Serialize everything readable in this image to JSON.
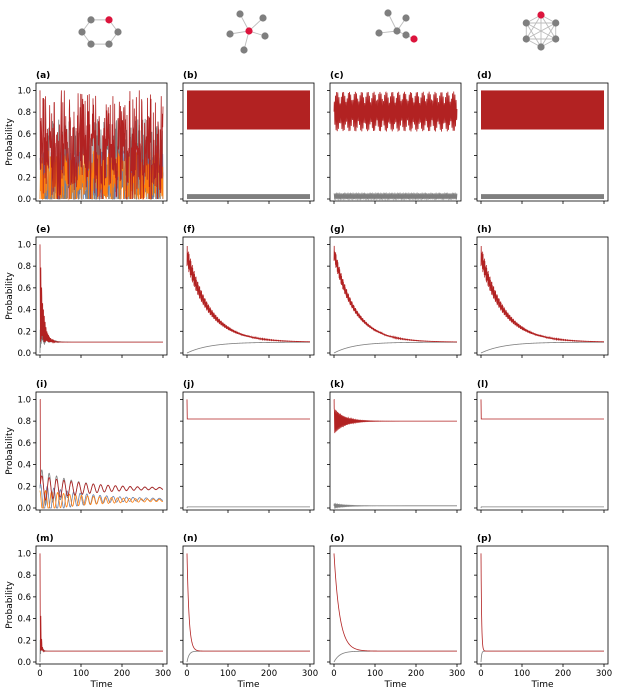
{
  "figure": {
    "graph_icons": [
      {
        "kind": "ring",
        "nodes": 6,
        "highlight_color": "#dc143c",
        "node_color": "#7f7f7f"
      },
      {
        "kind": "star",
        "nodes": 6,
        "highlight_color": "#dc143c",
        "node_color": "#7f7f7f"
      },
      {
        "kind": "tree",
        "nodes": 6,
        "highlight_color": "#dc143c",
        "node_color": "#7f7f7f"
      },
      {
        "kind": "complete",
        "nodes": 6,
        "highlight_color": "#dc143c",
        "node_color": "#7f7f7f"
      }
    ],
    "colors": {
      "target": "#b22222",
      "others": [
        "#7f7f7f",
        "#6a7fa8",
        "#ff7f0e",
        "#2ca02c",
        "#8c564b"
      ],
      "axis": "#000000"
    }
  },
  "chart_data": [
    {
      "panel": "(a)",
      "type": "line",
      "behavior": "chaotic",
      "ylabel": "Probability",
      "xlabel": "",
      "xlim": [
        0,
        300
      ],
      "ylim": [
        0,
        1.05
      ],
      "yticks": [
        "0.0",
        "0.2",
        "0.4",
        "0.6",
        "0.8",
        "1.0"
      ],
      "xticks": [],
      "series": [
        {
          "role": "target",
          "range": [
            0,
            1.0
          ]
        },
        {
          "role": "others",
          "range": [
            0,
            0.95
          ]
        }
      ]
    },
    {
      "panel": "(b)",
      "type": "line",
      "behavior": "band",
      "xlabel": "",
      "xlim": [
        0,
        300
      ],
      "ylim": [
        0,
        1.05
      ],
      "series": [
        {
          "role": "target",
          "band": [
            0.64,
            1.0
          ]
        },
        {
          "role": "others",
          "band": [
            0.0,
            0.045
          ]
        }
      ]
    },
    {
      "panel": "(c)",
      "type": "line",
      "behavior": "wave",
      "xlabel": "",
      "xlim": [
        0,
        300
      ],
      "ylim": [
        0,
        1.05
      ],
      "series": [
        {
          "role": "target",
          "band": [
            0.62,
            0.99
          ]
        },
        {
          "role": "others",
          "band": [
            0.0,
            0.05
          ]
        }
      ]
    },
    {
      "panel": "(d)",
      "type": "line",
      "behavior": "band",
      "xlabel": "",
      "xlim": [
        0,
        300
      ],
      "ylim": [
        0,
        1.05
      ],
      "series": [
        {
          "role": "target",
          "band": [
            0.64,
            1.0
          ]
        },
        {
          "role": "others",
          "band": [
            0.0,
            0.045
          ]
        }
      ]
    },
    {
      "panel": "(e)",
      "type": "line",
      "behavior": "fast_decay",
      "ylabel": "Probability",
      "xlabel": "",
      "xlim": [
        0,
        300
      ],
      "ylim": [
        0,
        1.05
      ],
      "yticks": [
        "0.0",
        "0.2",
        "0.4",
        "0.6",
        "0.8",
        "1.0"
      ],
      "series": [
        {
          "role": "target",
          "start": 1.0,
          "steady": 0.1,
          "tau": 8
        },
        {
          "role": "others",
          "start": 0.0,
          "steady": 0.1,
          "tau": 8
        }
      ]
    },
    {
      "panel": "(f)",
      "type": "line",
      "behavior": "oscillating_decay",
      "xlabel": "",
      "xlim": [
        0,
        300
      ],
      "ylim": [
        0,
        1.05
      ],
      "series": [
        {
          "role": "target",
          "start": 1.0,
          "steady": 0.1,
          "tau": 55,
          "amp": 0.2
        },
        {
          "role": "others",
          "start": 0.0,
          "steady": 0.1,
          "tau": 55
        }
      ]
    },
    {
      "panel": "(g)",
      "type": "line",
      "behavior": "oscillating_decay",
      "xlabel": "",
      "xlim": [
        0,
        300
      ],
      "ylim": [
        0,
        1.05
      ],
      "series": [
        {
          "role": "target",
          "start": 1.0,
          "steady": 0.1,
          "tau": 50,
          "amp": 0.15
        },
        {
          "role": "others",
          "start": 0.0,
          "steady": 0.1,
          "tau": 50
        }
      ]
    },
    {
      "panel": "(h)",
      "type": "line",
      "behavior": "oscillating_decay",
      "xlabel": "",
      "xlim": [
        0,
        300
      ],
      "ylim": [
        0,
        1.05
      ],
      "series": [
        {
          "role": "target",
          "start": 1.0,
          "steady": 0.1,
          "tau": 55,
          "amp": 0.2
        },
        {
          "role": "others",
          "start": 0.0,
          "steady": 0.1,
          "tau": 55
        }
      ]
    },
    {
      "panel": "(i)",
      "type": "line",
      "behavior": "damped_multi",
      "ylabel": "Probability",
      "xlabel": "",
      "xlim": [
        0,
        300
      ],
      "ylim": [
        0,
        1.05
      ],
      "yticks": [
        "0.0",
        "0.2",
        "0.4",
        "0.6",
        "0.8",
        "1.0"
      ],
      "series": [
        {
          "role": "target",
          "start": 1.0,
          "steady": 0.18
        },
        {
          "role": "others",
          "steady": [
            0.18,
            0.08,
            0.07
          ]
        }
      ]
    },
    {
      "panel": "(j)",
      "type": "line",
      "behavior": "step_flat",
      "xlabel": "",
      "xlim": [
        0,
        300
      ],
      "ylim": [
        0,
        1.05
      ],
      "series": [
        {
          "role": "target",
          "start": 1.0,
          "steady": 0.82
        },
        {
          "role": "others",
          "steady": 0.01
        }
      ]
    },
    {
      "panel": "(k)",
      "type": "line",
      "behavior": "damped",
      "xlabel": "",
      "xlim": [
        0,
        300
      ],
      "ylim": [
        0,
        1.05
      ],
      "series": [
        {
          "role": "target",
          "start": 1.0,
          "steady": 0.8,
          "amp": 0.12,
          "tau": 25
        },
        {
          "role": "others",
          "steady": 0.02
        }
      ]
    },
    {
      "panel": "(l)",
      "type": "line",
      "behavior": "step_flat",
      "xlabel": "",
      "xlim": [
        0,
        300
      ],
      "ylim": [
        0,
        1.05
      ],
      "series": [
        {
          "role": "target",
          "start": 1.0,
          "steady": 0.82
        },
        {
          "role": "others",
          "steady": 0.01
        }
      ]
    },
    {
      "panel": "(m)",
      "type": "line",
      "behavior": "fast_decay",
      "ylabel": "Probability",
      "xlabel": "Time",
      "xlim": [
        0,
        300
      ],
      "ylim": [
        0,
        1.05
      ],
      "yticks": [
        "0.0",
        "0.2",
        "0.4",
        "0.6",
        "0.8",
        "1.0"
      ],
      "xticks": [
        "0",
        "100",
        "200",
        "300"
      ],
      "series": [
        {
          "role": "target",
          "start": 1.0,
          "steady": 0.1,
          "tau": 2
        },
        {
          "role": "others",
          "start": 0.0,
          "steady": 0.1,
          "tau": 2
        }
      ]
    },
    {
      "panel": "(n)",
      "type": "line",
      "behavior": "smooth_decay",
      "xlabel": "Time",
      "xlim": [
        0,
        300
      ],
      "ylim": [
        0,
        1.05
      ],
      "xticks": [
        "0",
        "100",
        "200",
        "300"
      ],
      "series": [
        {
          "role": "target",
          "start": 1.0,
          "steady": 0.1,
          "tau": 5
        },
        {
          "role": "others",
          "start": 0.0,
          "steady": 0.1,
          "tau": 5
        }
      ]
    },
    {
      "panel": "(o)",
      "type": "line",
      "behavior": "smooth_decay",
      "xlabel": "Time",
      "xlim": [
        0,
        300
      ],
      "ylim": [
        0,
        1.05
      ],
      "xticks": [
        "0",
        "100",
        "200",
        "300"
      ],
      "series": [
        {
          "role": "target",
          "start": 1.0,
          "steady": 0.1,
          "tau": 14
        },
        {
          "role": "others",
          "start": 0.0,
          "steady": 0.1,
          "tau": 14
        }
      ]
    },
    {
      "panel": "(p)",
      "type": "line",
      "behavior": "smooth_decay",
      "xlabel": "Time",
      "xlim": [
        0,
        300
      ],
      "ylim": [
        0,
        1.05
      ],
      "xticks": [
        "0",
        "100",
        "200",
        "300"
      ],
      "series": [
        {
          "role": "target",
          "start": 1.0,
          "steady": 0.1,
          "tau": 1.5
        },
        {
          "role": "others",
          "start": 0.0,
          "steady": 0.1,
          "tau": 1.5
        }
      ]
    }
  ]
}
